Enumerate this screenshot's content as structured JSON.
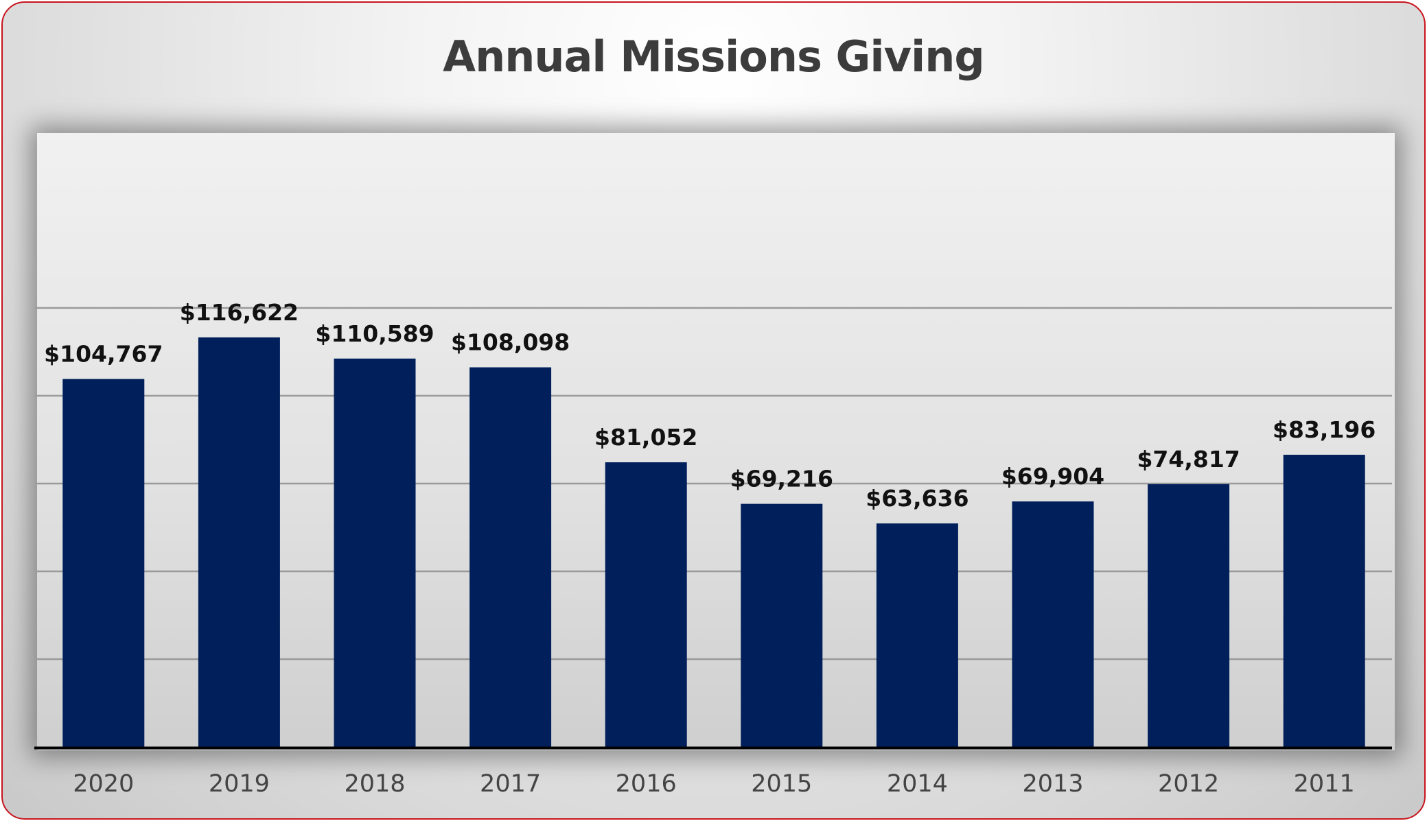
{
  "chart_data": {
    "type": "bar",
    "title": "Annual Missions Giving",
    "categories": [
      "2020",
      "2019",
      "2018",
      "2017",
      "2016",
      "2015",
      "2014",
      "2013",
      "2012",
      "2011"
    ],
    "values": [
      104767,
      116622,
      110589,
      108098,
      81052,
      69216,
      63636,
      69904,
      74817,
      83196
    ],
    "data_labels": [
      "$104,767",
      "$116,622",
      "$110,589",
      "$108,098",
      "$81,052",
      "$69,216",
      "$63,636",
      "$69,904",
      "$74,817",
      "$83,196"
    ],
    "ylim": [
      0,
      150000
    ],
    "y_gridlines": [
      25000,
      50000,
      75000,
      100000,
      125000
    ],
    "grid": true,
    "legend": "none",
    "colors": {
      "bar": "#001f5b",
      "gridline": "#9a9a9a",
      "axis": "#000000",
      "frame_border": "#c8141c"
    }
  }
}
